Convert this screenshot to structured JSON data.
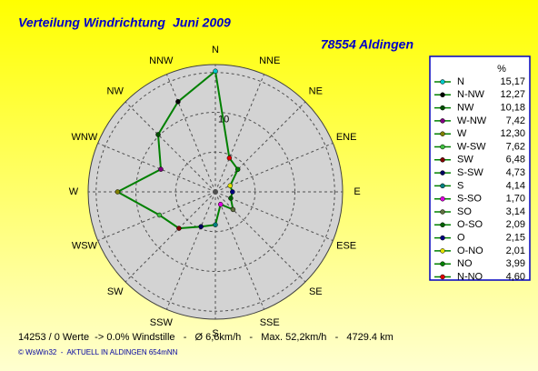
{
  "chart_data": {
    "type": "radar",
    "title": "Verteilung Windrichtung",
    "period": "Juni 2009",
    "station": "78554 Aldingen",
    "categories": [
      "N",
      "NNE",
      "NE",
      "ENE",
      "E",
      "ESE",
      "SE",
      "SSE",
      "S",
      "SSW",
      "SW",
      "WSW",
      "W",
      "WNW",
      "NW",
      "NNW"
    ],
    "values": [
      15.17,
      4.6,
      3.99,
      2.01,
      2.15,
      2.09,
      3.14,
      1.7,
      4.14,
      4.73,
      6.48,
      7.62,
      12.3,
      7.42,
      10.18,
      12.27
    ],
    "value_labels": [
      "15,17",
      "4,60",
      "3,99",
      "2,01",
      "2,15",
      "2,09",
      "3,14",
      "1,70",
      "4,14",
      "4,73",
      "6,48",
      "7,62",
      "12,30",
      "7,42",
      "10,18",
      "12,27"
    ],
    "point_names": [
      "N",
      "N-NO",
      "NO",
      "O-NO",
      "O",
      "O-SO",
      "SO",
      "S-SO",
      "S",
      "S-SW",
      "SW",
      "W-SW",
      "W",
      "W-NW",
      "NW",
      "N-NW"
    ],
    "point_colors": [
      "#00c8c8",
      "#e00000",
      "#008000",
      "#e0e000",
      "#000080",
      "#006000",
      "#607040",
      "#e000e0",
      "#008080",
      "#000060",
      "#800000",
      "#40c040",
      "#808000",
      "#800080",
      "#005000",
      "#000000"
    ],
    "line_color": "#008000",
    "rlim": [
      0,
      16
    ],
    "rgrid": [
      5,
      10,
      15
    ],
    "rticks": [
      10
    ],
    "legend_title": "%",
    "footer": "14253 / 0 Werte  -> 0.0% Windstille   -   Ø 6,6km/h   -   Max. 52,2km/h   -   4729.4 km",
    "credit": "© WsWin32  -  AKTUELL IN ALDINGEN 654mNN"
  }
}
